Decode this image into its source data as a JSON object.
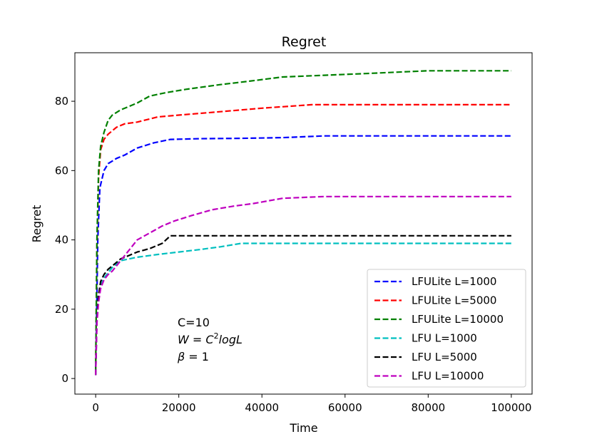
{
  "chart_data": {
    "type": "line",
    "title": "Regret",
    "xlabel": "Time",
    "ylabel": "Regret",
    "xlim": [
      -5000,
      105000
    ],
    "ylim": [
      -4.5,
      94
    ],
    "xticks": [
      0,
      20000,
      40000,
      60000,
      80000,
      100000
    ],
    "yticks": [
      0,
      20,
      40,
      60,
      80
    ],
    "grid": false,
    "legend_position": "lower-right",
    "series": [
      {
        "name": "LFULite L=1000",
        "color": "#0000ff",
        "style": "dashed",
        "x": [
          0,
          500,
          1000,
          2000,
          3000,
          5000,
          7000,
          10000,
          14000,
          18000,
          25000,
          35000,
          45000,
          55000,
          70000,
          85000,
          100000
        ],
        "y": [
          1,
          40,
          55,
          60,
          62,
          63.5,
          64.5,
          66.5,
          68,
          69,
          69.2,
          69.3,
          69.5,
          70,
          70,
          70,
          70
        ]
      },
      {
        "name": "LFULite L=5000",
        "color": "#ff0000",
        "style": "dashed",
        "x": [
          0,
          300,
          700,
          1200,
          2000,
          3000,
          5000,
          7000,
          10000,
          15000,
          20000,
          30000,
          40000,
          52000,
          65000,
          80000,
          100000
        ],
        "y": [
          2,
          38,
          58,
          66,
          69,
          70.5,
          72.5,
          73.5,
          74,
          75.5,
          76,
          77,
          78,
          79,
          79,
          79,
          79
        ]
      },
      {
        "name": "LFULite L=10000",
        "color": "#008000",
        "style": "dashed",
        "x": [
          0,
          300,
          700,
          1200,
          2000,
          3000,
          4000,
          6000,
          8000,
          10000,
          13000,
          17000,
          22000,
          30000,
          37000,
          45000,
          55000,
          65000,
          80000,
          100000
        ],
        "y": [
          2,
          40,
          60,
          67,
          71,
          74.5,
          76,
          77.5,
          78.5,
          79.5,
          81.5,
          82.5,
          83.5,
          84.8,
          85.8,
          87,
          87.5,
          88,
          88.8,
          88.8
        ]
      },
      {
        "name": "LFU L=1000",
        "color": "#00bfbf",
        "style": "dashed",
        "x": [
          0,
          300,
          700,
          1200,
          2000,
          3000,
          4000,
          5000,
          6000,
          8000,
          10000,
          15000,
          20000,
          25000,
          30000,
          35000,
          45000,
          60000,
          80000,
          100000
        ],
        "y": [
          1,
          18,
          24,
          27,
          29,
          30.5,
          32,
          33,
          34,
          34.5,
          35,
          35.8,
          36.5,
          37.2,
          38,
          39,
          39,
          39,
          39,
          39
        ]
      },
      {
        "name": "LFU L=5000",
        "color": "#000000",
        "style": "dashed",
        "x": [
          0,
          300,
          700,
          1200,
          2000,
          3000,
          4000,
          5000,
          6000,
          8000,
          10000,
          13000,
          16000,
          18000,
          20000,
          25000,
          30000,
          40000,
          60000,
          80000,
          100000
        ],
        "y": [
          1,
          17,
          24,
          28,
          30,
          31.5,
          32.5,
          33.5,
          34.5,
          35.5,
          36.5,
          37.5,
          39,
          41.2,
          41.2,
          41.2,
          41.2,
          41.2,
          41.2,
          41.2,
          41.2
        ]
      },
      {
        "name": "LFU L=10000",
        "color": "#bf00bf",
        "style": "dashed",
        "x": [
          0,
          300,
          700,
          1200,
          2000,
          3000,
          4000,
          6000,
          8000,
          10000,
          13000,
          16000,
          19000,
          23000,
          28000,
          33000,
          38000,
          45000,
          55000,
          70000,
          85000,
          100000
        ],
        "y": [
          1,
          16,
          22,
          26,
          28.5,
          30,
          31,
          34,
          37,
          40,
          42,
          44,
          45.5,
          47,
          48.7,
          49.7,
          50.5,
          52,
          52.5,
          52.5,
          52.5,
          52.5
        ]
      }
    ]
  },
  "annotation": {
    "line1": "C=10",
    "line2_var": "W",
    "line2_eq": " = ",
    "line2_base": "C",
    "line2_sup": "2",
    "line2_rest": "logL",
    "line3_var": "β",
    "line3_eq": " = 1"
  }
}
